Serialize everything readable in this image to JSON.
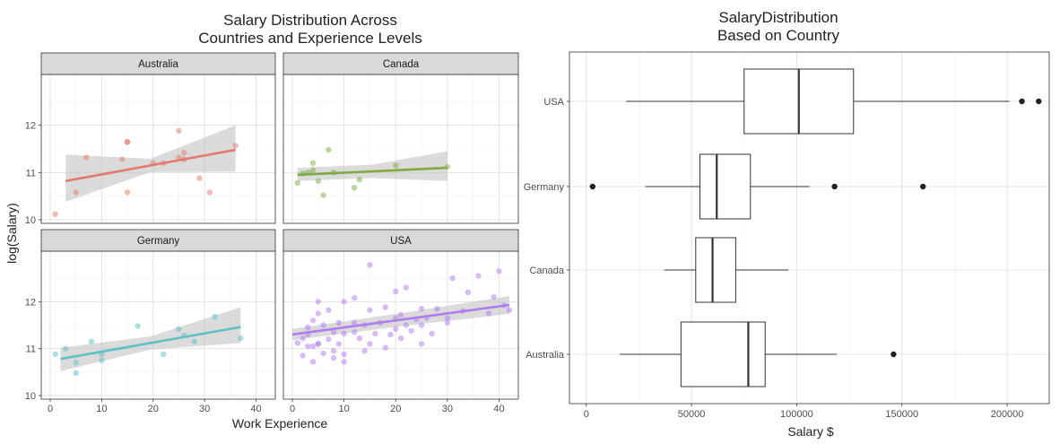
{
  "chart_data": [
    {
      "type": "scatter",
      "title": "Salary Distribution Across\nCountries and Experience Levels",
      "xlabel": "Work Experience",
      "ylabel": "log(Salary)",
      "xlim": [
        0,
        42
      ],
      "ylim": [
        10,
        13
      ],
      "x_ticks": [
        0,
        10,
        20,
        30,
        40
      ],
      "y_ticks": [
        10,
        11,
        12
      ],
      "grid": true,
      "facets": [
        {
          "name": "Australia",
          "color": "#E2796F",
          "points": [
            [
              1,
              10.12
            ],
            [
              5,
              10.58
            ],
            [
              7,
              11.32
            ],
            [
              14,
              11.28
            ],
            [
              15,
              11.65
            ],
            [
              15,
              11.64
            ],
            [
              15,
              10.58
            ],
            [
              20,
              11.2
            ],
            [
              22,
              11.2
            ],
            [
              25,
              11.32
            ],
            [
              25,
              11.88
            ],
            [
              26,
              11.42
            ],
            [
              26,
              11.28
            ],
            [
              29,
              10.88
            ],
            [
              31,
              10.58
            ],
            [
              36,
              11.57
            ]
          ],
          "fit": {
            "x": [
              3,
              36
            ],
            "y": [
              10.82,
              11.48
            ]
          },
          "band_lower": [
            10.38,
            11.02
          ],
          "band_upper": [
            11.38,
            12.0
          ]
        },
        {
          "name": "Canada",
          "color": "#80A93F",
          "points": [
            [
              1,
              10.78
            ],
            [
              2,
              10.98
            ],
            [
              3,
              11.0
            ],
            [
              4,
              11.2
            ],
            [
              4,
              11.05
            ],
            [
              5,
              10.82
            ],
            [
              6,
              10.52
            ],
            [
              7,
              11.48
            ],
            [
              8,
              11.0
            ],
            [
              12,
              10.68
            ],
            [
              13,
              10.85
            ],
            [
              20,
              11.15
            ],
            [
              30,
              11.12
            ]
          ],
          "fit": {
            "x": [
              1,
              30
            ],
            "y": [
              10.95,
              11.1
            ]
          },
          "band_lower": [
            10.82,
            10.82
          ],
          "band_upper": [
            11.1,
            11.45
          ]
        },
        {
          "name": "Germany",
          "color": "#5FC0C6",
          "points": [
            [
              1,
              10.88
            ],
            [
              3,
              11.0
            ],
            [
              5,
              10.7
            ],
            [
              5,
              10.48
            ],
            [
              8,
              11.15
            ],
            [
              10,
              10.75
            ],
            [
              10,
              10.88
            ],
            [
              17,
              11.48
            ],
            [
              22,
              10.88
            ],
            [
              25,
              11.42
            ],
            [
              26,
              11.28
            ],
            [
              28,
              11.15
            ],
            [
              32,
              11.68
            ],
            [
              37,
              11.22
            ]
          ],
          "fit": {
            "x": [
              2,
              37
            ],
            "y": [
              10.78,
              11.46
            ]
          },
          "band_lower": [
            10.52,
            11.12
          ],
          "band_upper": [
            11.02,
            11.88
          ]
        },
        {
          "name": "USA",
          "color": "#B07CF2",
          "points": [
            [
              1,
              11.12
            ],
            [
              2,
              10.85
            ],
            [
              2,
              11.22
            ],
            [
              3,
              11.05
            ],
            [
              3,
              11.45
            ],
            [
              3,
              11.3
            ],
            [
              4,
              11.05
            ],
            [
              4,
              10.72
            ],
            [
              4,
              11.6
            ],
            [
              5,
              11.75
            ],
            [
              5,
              11.1
            ],
            [
              5,
              12.0
            ],
            [
              5,
              11.1
            ],
            [
              6,
              11.5
            ],
            [
              6,
              10.9
            ],
            [
              7,
              11.2
            ],
            [
              7,
              11.82
            ],
            [
              8,
              10.8
            ],
            [
              8,
              10.95
            ],
            [
              8,
              11.35
            ],
            [
              9,
              11.1
            ],
            [
              9,
              11.55
            ],
            [
              10,
              10.88
            ],
            [
              10,
              11.32
            ],
            [
              10,
              12.0
            ],
            [
              10,
              10.72
            ],
            [
              12,
              11.35
            ],
            [
              12,
              11.55
            ],
            [
              12,
              12.08
            ],
            [
              13,
              11.22
            ],
            [
              14,
              10.95
            ],
            [
              14,
              11.5
            ],
            [
              15,
              11.82
            ],
            [
              15,
              11.1
            ],
            [
              15,
              12.78
            ],
            [
              16,
              11.32
            ],
            [
              17,
              11.55
            ],
            [
              18,
              11.02
            ],
            [
              18,
              11.88
            ],
            [
              19,
              11.3
            ],
            [
              20,
              11.65
            ],
            [
              20,
              12.22
            ],
            [
              20,
              11.42
            ],
            [
              21,
              11.22
            ],
            [
              21,
              11.72
            ],
            [
              22,
              11.5
            ],
            [
              22,
              12.3
            ],
            [
              23,
              11.38
            ],
            [
              24,
              11.62
            ],
            [
              25,
              11.85
            ],
            [
              25,
              11.1
            ],
            [
              25,
              11.5
            ],
            [
              26,
              11.65
            ],
            [
              27,
              11.32
            ],
            [
              28,
              11.85
            ],
            [
              30,
              11.55
            ],
            [
              30,
              11.65
            ],
            [
              31,
              12.5
            ],
            [
              33,
              11.8
            ],
            [
              34,
              12.2
            ],
            [
              36,
              12.55
            ],
            [
              38,
              11.75
            ],
            [
              39,
              12.1
            ],
            [
              40,
              12.65
            ],
            [
              41,
              11.92
            ],
            [
              42,
              11.82
            ]
          ],
          "fit": {
            "x": [
              0,
              42
            ],
            "y": [
              11.3,
              11.93
            ]
          },
          "band_lower": [
            11.18,
            11.74
          ],
          "band_upper": [
            11.42,
            12.12
          ]
        }
      ]
    },
    {
      "type": "box",
      "title": "SalaryDistribution\nBased on Country",
      "xlabel": "Salary $",
      "ylabel": "",
      "xlim": [
        -8000,
        220000
      ],
      "x_ticks": [
        0,
        50000,
        100000,
        150000,
        200000
      ],
      "grid": true,
      "categories": [
        "USA",
        "Germany",
        "Canada",
        "Australia"
      ],
      "boxes": [
        {
          "name": "USA",
          "whisker_low": 19000,
          "q1": 75000,
          "median": 101000,
          "q3": 127000,
          "whisker_high": 201000,
          "outliers": [
            207000,
            215000
          ]
        },
        {
          "name": "Germany",
          "whisker_low": 28000,
          "q1": 54000,
          "median": 62000,
          "q3": 78000,
          "whisker_high": 106000,
          "outliers": [
            3000,
            118000,
            160000
          ]
        },
        {
          "name": "Canada",
          "whisker_low": 37000,
          "q1": 52000,
          "median": 60000,
          "q3": 71000,
          "whisker_high": 96000,
          "outliers": []
        },
        {
          "name": "Australia",
          "whisker_low": 16000,
          "q1": 45000,
          "median": 77000,
          "q3": 85000,
          "whisker_high": 119000,
          "outliers": [
            146000
          ]
        }
      ]
    }
  ]
}
